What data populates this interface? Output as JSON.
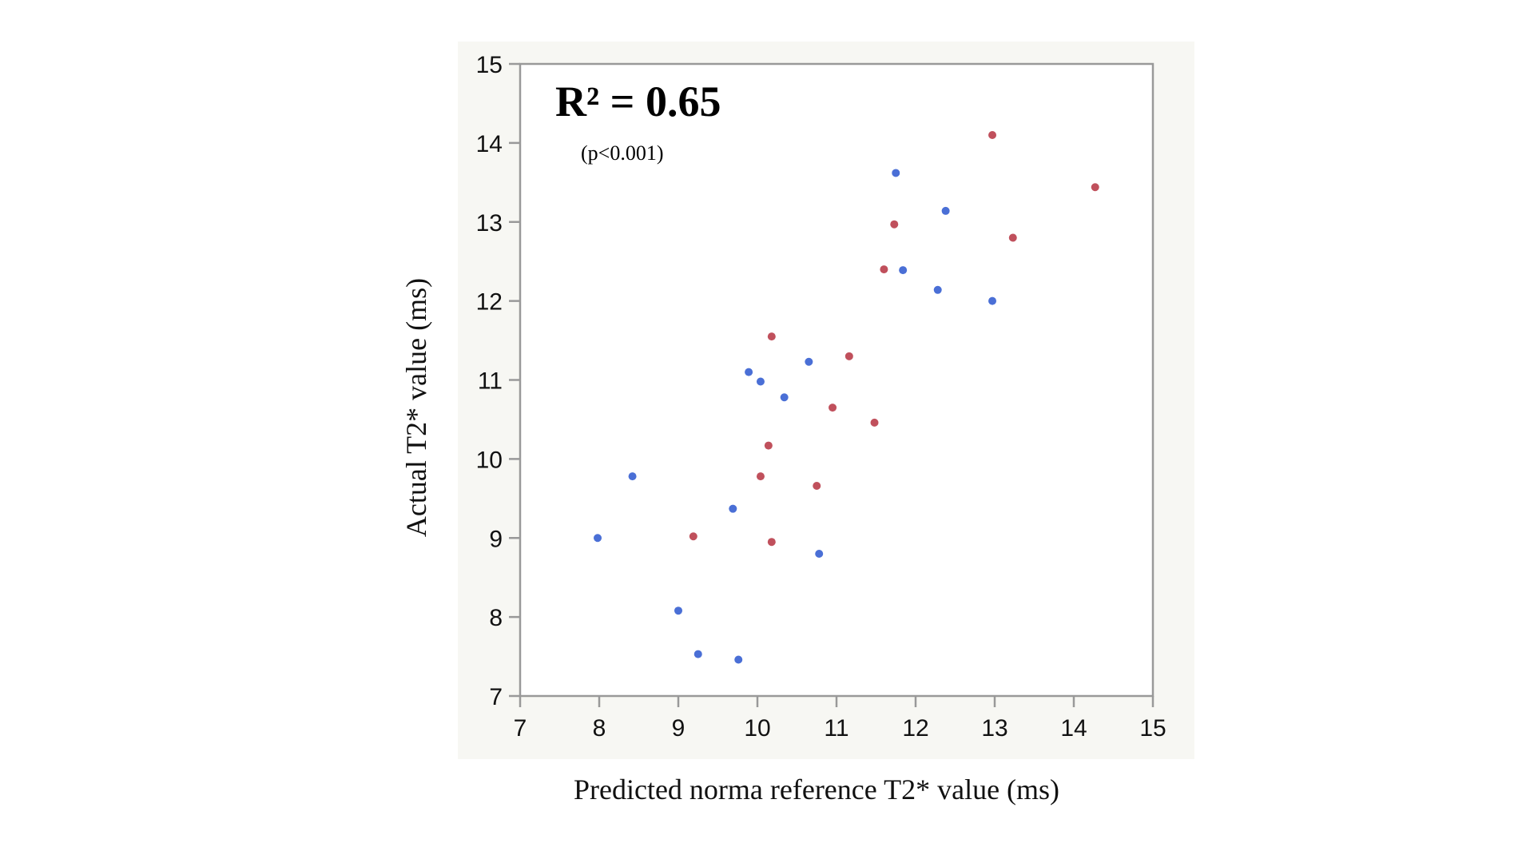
{
  "chart_data": {
    "type": "scatter",
    "title": "",
    "xlabel": "Predicted norma reference  T2* value  (ms)",
    "ylabel": "Actual T2* value  (ms)",
    "xlim": [
      7,
      15
    ],
    "ylim": [
      7,
      15
    ],
    "xticks": [
      "7",
      "8",
      "9",
      "10",
      "11",
      "12",
      "13",
      "14",
      "15"
    ],
    "yticks": [
      "7",
      "8",
      "9",
      "10",
      "11",
      "12",
      "13",
      "14",
      "15"
    ],
    "grid": false,
    "legend": "none",
    "annotations": {
      "r2": "R² = 0.65",
      "p": "(p<0.001)"
    },
    "colors": {
      "series_blue": "#4a6fd6",
      "series_red": "#c0505c",
      "panel_background": "#f7f7f3",
      "axis": "#999999"
    },
    "series": [
      {
        "color": "#4a6fd6",
        "points": [
          {
            "x": 7.98,
            "y": 9.0
          },
          {
            "x": 8.42,
            "y": 9.78
          },
          {
            "x": 9.0,
            "y": 8.08
          },
          {
            "x": 9.25,
            "y": 7.53
          },
          {
            "x": 9.76,
            "y": 7.46
          },
          {
            "x": 9.69,
            "y": 9.37
          },
          {
            "x": 9.89,
            "y": 11.1
          },
          {
            "x": 10.04,
            "y": 10.98
          },
          {
            "x": 10.34,
            "y": 10.78
          },
          {
            "x": 10.65,
            "y": 11.23
          },
          {
            "x": 10.78,
            "y": 8.8
          },
          {
            "x": 11.75,
            "y": 13.62
          },
          {
            "x": 11.84,
            "y": 12.39
          },
          {
            "x": 12.28,
            "y": 12.14
          },
          {
            "x": 12.38,
            "y": 13.14
          },
          {
            "x": 12.97,
            "y": 12.0
          }
        ]
      },
      {
        "color": "#c0505c",
        "points": [
          {
            "x": 9.19,
            "y": 9.02
          },
          {
            "x": 10.04,
            "y": 9.78
          },
          {
            "x": 10.14,
            "y": 10.17
          },
          {
            "x": 10.18,
            "y": 8.95
          },
          {
            "x": 10.18,
            "y": 11.55
          },
          {
            "x": 10.75,
            "y": 9.66
          },
          {
            "x": 10.95,
            "y": 10.65
          },
          {
            "x": 11.16,
            "y": 11.3
          },
          {
            "x": 11.48,
            "y": 10.46
          },
          {
            "x": 11.6,
            "y": 12.4
          },
          {
            "x": 11.73,
            "y": 12.97
          },
          {
            "x": 12.97,
            "y": 14.1
          },
          {
            "x": 13.23,
            "y": 12.8
          },
          {
            "x": 14.27,
            "y": 13.44
          }
        ]
      }
    ]
  }
}
